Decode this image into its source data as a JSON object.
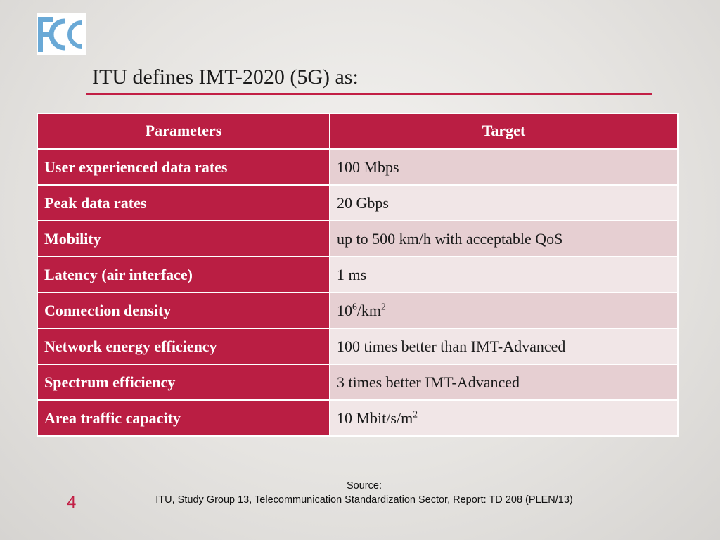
{
  "logo": {
    "text": "FCC",
    "colors": {
      "primary": "#6aa9d6",
      "background": "#ffffff"
    }
  },
  "title": "ITU defines IMT-2020 (5G) as:",
  "accent_color": "#c21f45",
  "table": {
    "headers": {
      "parameters": "Parameters",
      "target": "Target"
    },
    "rows": [
      {
        "parameter": "User experienced data rates",
        "target": "100 Mbps"
      },
      {
        "parameter": "Peak data rates",
        "target": "20 Gbps"
      },
      {
        "parameter": "Mobility",
        "target": "up to 500 km/h with acceptable QoS"
      },
      {
        "parameter": "Latency (air interface)",
        "target": "1 ms"
      },
      {
        "parameter": "Connection density",
        "target": "10",
        "target_sup1": "6",
        "target_mid": "/km",
        "target_sup2": "2"
      },
      {
        "parameter": "Network energy efficiency",
        "target": "100 times better than IMT-Advanced"
      },
      {
        "parameter": "Spectrum efficiency",
        "target": "3 times better IMT-Advanced"
      },
      {
        "parameter": "Area traffic capacity",
        "target": "10 Mbit/s/m",
        "target_sup": "2"
      }
    ]
  },
  "footer": {
    "page_number": "4",
    "source_label": "Source:",
    "source_text": "ITU, Study Group 13, Telecommunication Standardization Sector, Report: TD 208 (PLEN/13)"
  }
}
